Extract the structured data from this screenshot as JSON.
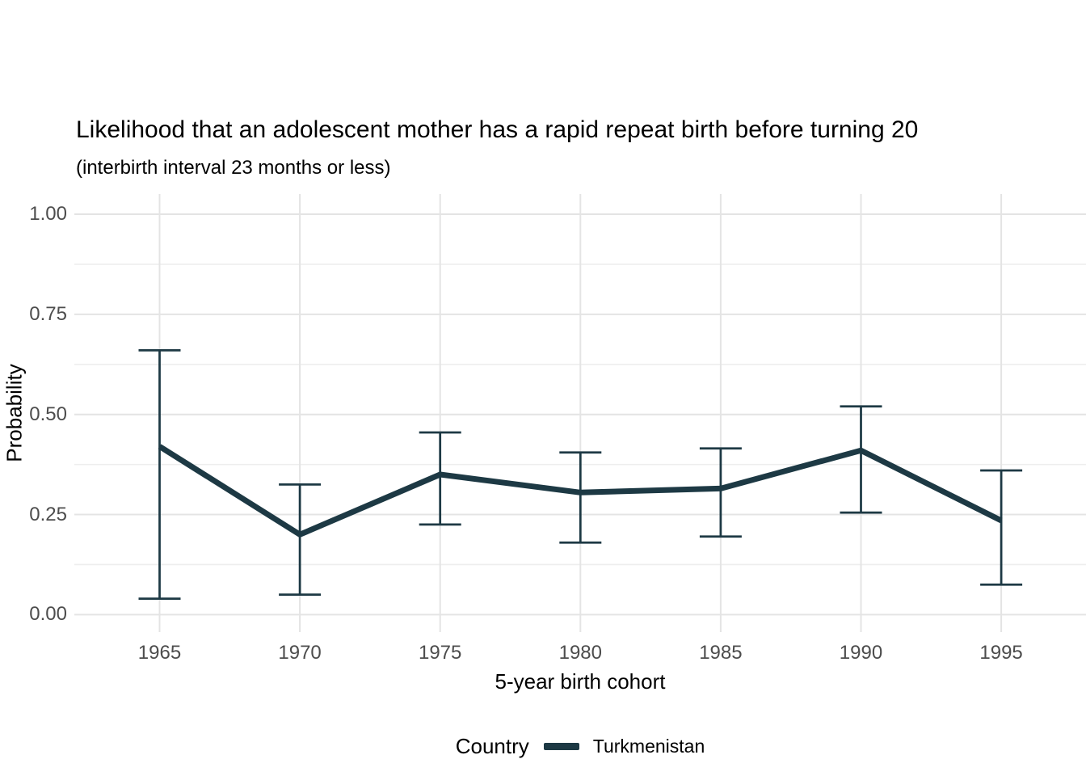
{
  "chart_data": {
    "type": "line",
    "title": "Likelihood that an adolescent mother has a rapid repeat birth before turning 20",
    "subtitle": "(interbirth interval 23 months or less)",
    "xlabel": "5-year birth cohort",
    "ylabel": "Probability",
    "x": [
      1965,
      1970,
      1975,
      1980,
      1985,
      1990,
      1995
    ],
    "x_tick_labels": [
      "1965",
      "1970",
      "1975",
      "1980",
      "1985",
      "1990",
      "1995"
    ],
    "y_tick_labels": [
      "0.00",
      "0.25",
      "0.50",
      "0.75",
      "1.00"
    ],
    "y_major_breaks": [
      0,
      0.25,
      0.5,
      0.75,
      1.0
    ],
    "y_minor_breaks": [
      0.125,
      0.375,
      0.625,
      0.875
    ],
    "ylim": [
      0,
      1
    ],
    "grid": "horizontal major+minor, vertical major only",
    "legend_position": "bottom",
    "series": [
      {
        "name": "Turkmenistan",
        "color": "#1d3944",
        "values": [
          0.42,
          0.2,
          0.35,
          0.305,
          0.315,
          0.41,
          0.235
        ],
        "ci_low": [
          0.04,
          0.05,
          0.225,
          0.18,
          0.195,
          0.255,
          0.075
        ],
        "ci_high": [
          0.66,
          0.325,
          0.455,
          0.405,
          0.415,
          0.52,
          0.36
        ],
        "error_bars": true
      }
    ]
  },
  "legend": {
    "title": "Country",
    "items": [
      {
        "label": "Turkmenistan",
        "color": "#1d3944"
      }
    ]
  },
  "colors": {
    "background": "#ffffff",
    "line": "#1d3944",
    "grid_major": "#e4e4e4",
    "grid_minor": "#eeeeee",
    "axis_text": "#4d4d4d",
    "title_text": "#000000"
  }
}
